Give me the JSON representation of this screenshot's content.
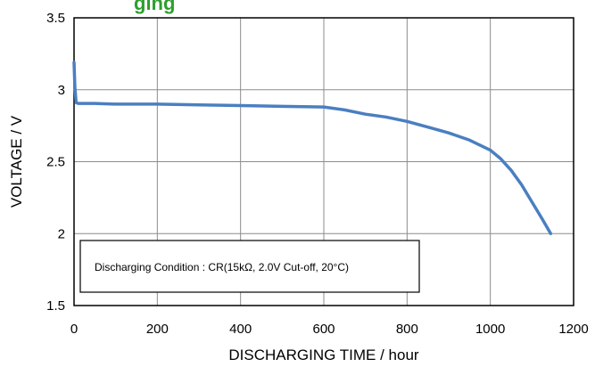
{
  "chart_data": {
    "type": "line",
    "title_fragment": "ging",
    "xlabel": "DISCHARGING TIME / hour",
    "ylabel": "VOLTAGE / V",
    "xlim": [
      0,
      1200
    ],
    "ylim": [
      1.5,
      3.5
    ],
    "x_ticks": [
      "0",
      "200",
      "400",
      "600",
      "800",
      "1000",
      "1200"
    ],
    "y_ticks": [
      "1.5",
      "2",
      "2.5",
      "3",
      "3.5"
    ],
    "grid": true,
    "annotation": "Discharging Condition : CR(15kΩ, 2.0V Cut-off, 20°C)",
    "line_color": "#4a7fc1",
    "series": [
      {
        "x": [
          0,
          2,
          5,
          10,
          50,
          100,
          200,
          300,
          400,
          500,
          600,
          650,
          700,
          750,
          800,
          850,
          900,
          950,
          1000,
          1025,
          1050,
          1075,
          1100,
          1125,
          1145
        ],
        "y": [
          3.19,
          3.02,
          2.91,
          2.905,
          2.905,
          2.9,
          2.9,
          2.895,
          2.89,
          2.885,
          2.88,
          2.86,
          2.83,
          2.81,
          2.78,
          2.74,
          2.7,
          2.65,
          2.58,
          2.52,
          2.44,
          2.34,
          2.22,
          2.1,
          2.0
        ]
      }
    ]
  }
}
